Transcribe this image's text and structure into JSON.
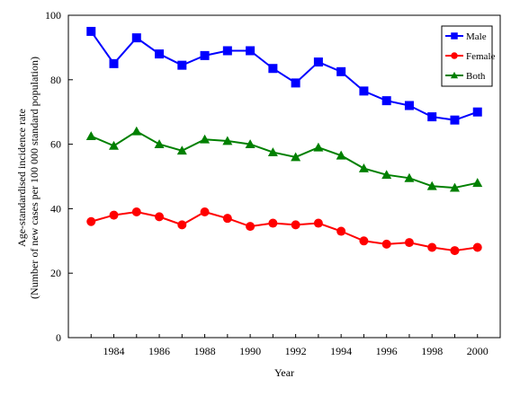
{
  "chart_data": {
    "type": "line",
    "title": "",
    "xlabel": "Year",
    "ylabel_line1": "Age-standardised incidence rate",
    "ylabel_line2": "(Number of new cases per 100 000 standard population)",
    "x": [
      1983,
      1984,
      1985,
      1986,
      1987,
      1988,
      1989,
      1990,
      1991,
      1992,
      1993,
      1994,
      1995,
      1996,
      1997,
      1998,
      1999,
      2000
    ],
    "xticks": [
      1984,
      1986,
      1988,
      1990,
      1992,
      1994,
      1996,
      1998,
      2000
    ],
    "xlim": [
      1982,
      2001
    ],
    "ylim": [
      0,
      100
    ],
    "yticks": [
      0,
      20,
      40,
      60,
      80,
      100
    ],
    "grid": false,
    "legend_position": "top-right",
    "series": [
      {
        "name": "Male",
        "color": "#0000ff",
        "marker": "square",
        "values": [
          95,
          85,
          93,
          88,
          84.5,
          87.5,
          89,
          89,
          83.5,
          79,
          85.5,
          82.5,
          76.5,
          73.5,
          72,
          68.5,
          67.5,
          70
        ]
      },
      {
        "name": "Female",
        "color": "#ff0000",
        "marker": "circle",
        "values": [
          36,
          38,
          39,
          37.5,
          35,
          39,
          37,
          34.5,
          35.5,
          35,
          35.5,
          33,
          30,
          29,
          29.5,
          28,
          27,
          28
        ]
      },
      {
        "name": "Both",
        "color": "#008000",
        "marker": "triangle",
        "values": [
          62.5,
          59.5,
          64,
          60,
          58,
          61.5,
          61,
          60,
          57.5,
          56,
          59,
          56.5,
          52.5,
          50.5,
          49.5,
          47,
          46.5,
          48
        ]
      }
    ]
  }
}
